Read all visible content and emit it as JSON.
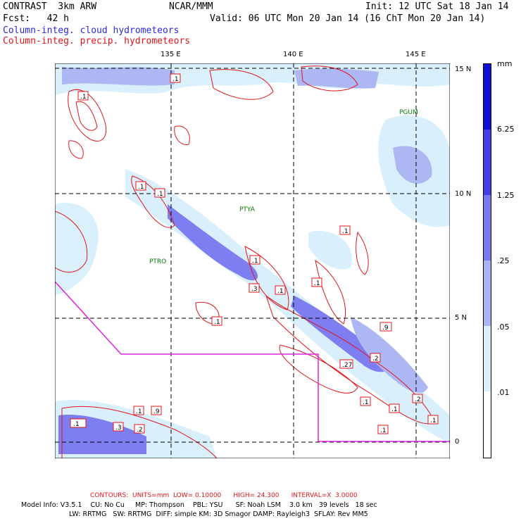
{
  "header": {
    "title": "CONTRAST  3km ARW",
    "org": "NCAR/MMM",
    "init": "Init: 12 UTC Sat 18 Jan 14",
    "fcst": "Fcst:   42 h",
    "valid": "Valid: 06 UTC Mon 20 Jan 14 (16 ChT Mon 20 Jan 14)",
    "legend_cloud": "Column-integ. cloud hydrometeors",
    "legend_precip": "Column-integ. precip. hydrometeors"
  },
  "axes": {
    "lon_labels": [
      "135 E",
      "140 E",
      "145 E"
    ],
    "lat_labels": [
      "15 N",
      "10 N",
      "5 N",
      "0"
    ]
  },
  "colorbar": {
    "unit": "mm",
    "labels": [
      "6.25",
      "1.25",
      ".25",
      ".05",
      ".01"
    ],
    "colors": [
      "#1010d8",
      "#4040e8",
      "#7878f0",
      "#a8b4f4",
      "#d8f0fc",
      "#ffffff"
    ]
  },
  "map_labels": {
    "stations": [
      "PGUM",
      "PTYA",
      "PTRO"
    ],
    "values": [
      ".1",
      ".1",
      ".1",
      ".1",
      ".1",
      ".1",
      ".1",
      ".3",
      ".1",
      ".1",
      ".9",
      ".2",
      ".27",
      ".1",
      ".1",
      ".9",
      ".1",
      ".1",
      ".3",
      ".2",
      ".1",
      ".2",
      ".1"
    ]
  },
  "footer": {
    "contours": "CONTOURS:  UNITS=mm  LOW= 0.10000      HIGH= 24.300      INTERVAL=X  3.0000",
    "model_line1": "Model Info: V3.5.1    CU: No Cu     MP: Thompson    PBL: YSU      SF: Noah LSM    3.0 km   39 levels   18 sec",
    "model_line2": "LW: RRTMG   SW: RRTMG  DIFF: simple KM: 3D Smagor DAMP: Rayleigh3  SFLAY: Rev MM5"
  }
}
